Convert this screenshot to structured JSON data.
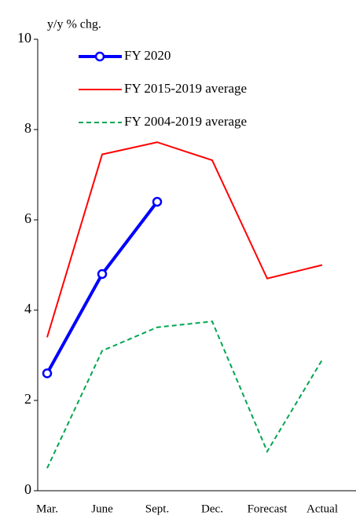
{
  "chart_data": {
    "type": "line",
    "ylabel": "y/y % chg.",
    "categories": [
      "Mar.",
      "June",
      "Sept.",
      "Dec.",
      "Forecast",
      "Actual"
    ],
    "series": [
      {
        "name": "FY 2020",
        "color": "#0000ff",
        "style": "solid",
        "width": 4,
        "marker": true,
        "values": [
          2.6,
          4.8,
          6.4,
          null,
          null,
          null
        ]
      },
      {
        "name": "FY 2015-2019 average",
        "color": "#ff0000",
        "style": "solid",
        "width": 2,
        "marker": false,
        "values": [
          3.4,
          7.45,
          7.72,
          7.32,
          4.7,
          5.0
        ]
      },
      {
        "name": "FY 2004-2019 average",
        "color": "#00a651",
        "style": "dashed",
        "width": 2,
        "marker": false,
        "values": [
          0.5,
          3.1,
          3.62,
          3.75,
          0.87,
          2.9
        ]
      }
    ],
    "ylim": [
      0,
      10
    ],
    "yticks": [
      0,
      2,
      4,
      6,
      8,
      10
    ],
    "grid": false,
    "legend": "upper left"
  }
}
